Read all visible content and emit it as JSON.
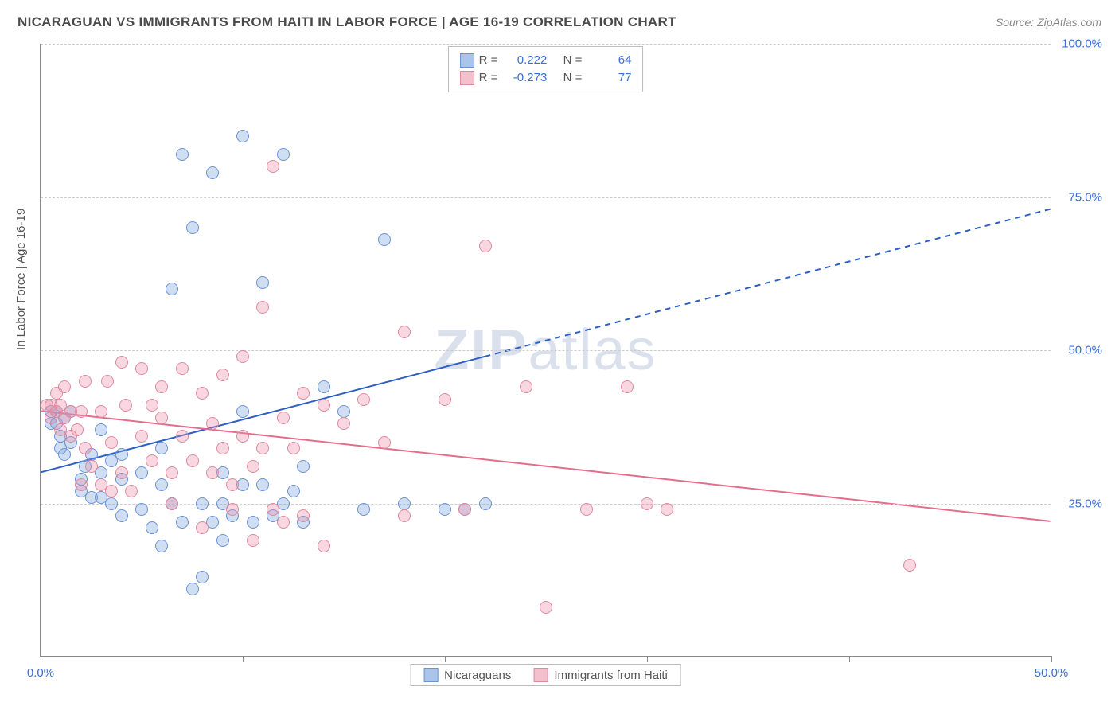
{
  "title": "NICARAGUAN VS IMMIGRANTS FROM HAITI IN LABOR FORCE | AGE 16-19 CORRELATION CHART",
  "source_label": "Source: ZipAtlas.com",
  "ylabel": "In Labor Force | Age 16-19",
  "watermark_a": "ZIP",
  "watermark_b": "atlas",
  "chart": {
    "type": "scatter",
    "xlim": [
      0,
      50
    ],
    "ylim": [
      0,
      100
    ],
    "xticks": [
      0,
      10,
      20,
      30,
      40,
      50
    ],
    "yticks": [
      25,
      50,
      75,
      100
    ],
    "xtick_labels": {
      "0": "0.0%",
      "50": "50.0%"
    },
    "ytick_labels": {
      "25": "25.0%",
      "50": "50.0%",
      "75": "75.0%",
      "100": "100.0%"
    },
    "grid_color": "#cccccc",
    "axis_color": "#888888",
    "label_color": "#3b6fd6",
    "background": "#ffffff",
    "point_radius": 8,
    "series": [
      {
        "id": "nicaraguans",
        "label": "Nicaraguans",
        "fill": "rgba(120,160,220,0.35)",
        "stroke": "#6a93d6",
        "swatch_fill": "#aac4ea",
        "swatch_stroke": "#6a93d6",
        "R": "0.222",
        "N": "64",
        "trend": {
          "x1": 0,
          "y1": 30,
          "x2": 50,
          "y2": 73,
          "solid_until_x": 22,
          "color": "#2d5fc4",
          "width": 2
        },
        "points": [
          [
            0.5,
            40
          ],
          [
            0.5,
            38
          ],
          [
            0.8,
            40
          ],
          [
            0.8,
            38
          ],
          [
            1,
            34
          ],
          [
            1,
            36
          ],
          [
            1.2,
            33
          ],
          [
            1.2,
            39
          ],
          [
            1.5,
            35
          ],
          [
            1.5,
            40
          ],
          [
            2,
            29
          ],
          [
            2,
            27
          ],
          [
            2.2,
            31
          ],
          [
            2.5,
            33
          ],
          [
            2.5,
            26
          ],
          [
            3,
            26
          ],
          [
            3,
            30
          ],
          [
            3,
            37
          ],
          [
            3.5,
            32
          ],
          [
            3.5,
            25
          ],
          [
            4,
            29
          ],
          [
            4,
            23
          ],
          [
            4,
            33
          ],
          [
            5,
            24
          ],
          [
            5,
            30
          ],
          [
            5.5,
            21
          ],
          [
            6,
            34
          ],
          [
            6,
            18
          ],
          [
            6,
            28
          ],
          [
            6.5,
            60
          ],
          [
            6.5,
            25
          ],
          [
            7,
            82
          ],
          [
            7,
            22
          ],
          [
            7.5,
            70
          ],
          [
            7.5,
            11
          ],
          [
            8,
            25
          ],
          [
            8,
            13
          ],
          [
            8.5,
            79
          ],
          [
            8.5,
            22
          ],
          [
            9,
            25
          ],
          [
            9,
            30
          ],
          [
            9,
            19
          ],
          [
            9.5,
            23
          ],
          [
            10,
            28
          ],
          [
            10,
            85
          ],
          [
            10,
            40
          ],
          [
            10.5,
            22
          ],
          [
            11,
            28
          ],
          [
            11,
            61
          ],
          [
            11.5,
            23
          ],
          [
            12,
            82
          ],
          [
            12,
            25
          ],
          [
            12.5,
            27
          ],
          [
            13,
            22
          ],
          [
            13,
            31
          ],
          [
            14,
            44
          ],
          [
            15,
            40
          ],
          [
            16,
            24
          ],
          [
            17,
            68
          ],
          [
            18,
            25
          ],
          [
            20,
            24
          ],
          [
            21,
            24
          ],
          [
            22,
            25
          ]
        ]
      },
      {
        "id": "haiti",
        "label": "Immigrants from Haiti",
        "fill": "rgba(235,140,165,0.35)",
        "stroke": "#e08aa0",
        "swatch_fill": "#f3c0cd",
        "swatch_stroke": "#e08aa0",
        "R": "-0.273",
        "N": "77",
        "trend": {
          "x1": 0,
          "y1": 40,
          "x2": 50,
          "y2": 22,
          "solid_until_x": 50,
          "color": "#e56d8c",
          "width": 2
        },
        "points": [
          [
            0.3,
            41
          ],
          [
            0.5,
            41
          ],
          [
            0.5,
            39
          ],
          [
            0.8,
            40
          ],
          [
            0.8,
            43
          ],
          [
            1,
            37
          ],
          [
            1,
            41
          ],
          [
            1.2,
            44
          ],
          [
            1.2,
            39
          ],
          [
            1.5,
            40
          ],
          [
            1.5,
            36
          ],
          [
            1.8,
            37
          ],
          [
            2,
            28
          ],
          [
            2,
            40
          ],
          [
            2.2,
            45
          ],
          [
            2.2,
            34
          ],
          [
            2.5,
            31
          ],
          [
            3,
            28
          ],
          [
            3,
            40
          ],
          [
            3.3,
            45
          ],
          [
            3.5,
            35
          ],
          [
            3.5,
            27
          ],
          [
            4,
            48
          ],
          [
            4,
            30
          ],
          [
            4.2,
            41
          ],
          [
            4.5,
            27
          ],
          [
            5,
            47
          ],
          [
            5,
            36
          ],
          [
            5.5,
            32
          ],
          [
            5.5,
            41
          ],
          [
            6,
            39
          ],
          [
            6,
            44
          ],
          [
            6.5,
            30
          ],
          [
            6.5,
            25
          ],
          [
            7,
            36
          ],
          [
            7,
            47
          ],
          [
            7.5,
            32
          ],
          [
            8,
            43
          ],
          [
            8,
            21
          ],
          [
            8.5,
            38
          ],
          [
            8.5,
            30
          ],
          [
            9,
            34
          ],
          [
            9,
            46
          ],
          [
            9.5,
            28
          ],
          [
            9.5,
            24
          ],
          [
            10,
            49
          ],
          [
            10,
            36
          ],
          [
            10.5,
            19
          ],
          [
            10.5,
            31
          ],
          [
            11,
            57
          ],
          [
            11,
            34
          ],
          [
            11.5,
            24
          ],
          [
            11.5,
            80
          ],
          [
            12,
            22
          ],
          [
            12,
            39
          ],
          [
            12.5,
            34
          ],
          [
            13,
            43
          ],
          [
            13,
            23
          ],
          [
            14,
            41
          ],
          [
            14,
            18
          ],
          [
            15,
            38
          ],
          [
            16,
            42
          ],
          [
            17,
            35
          ],
          [
            18,
            53
          ],
          [
            18,
            23
          ],
          [
            20,
            42
          ],
          [
            21,
            24
          ],
          [
            22,
            67
          ],
          [
            24,
            44
          ],
          [
            25,
            8
          ],
          [
            27,
            24
          ],
          [
            29,
            44
          ],
          [
            30,
            25
          ],
          [
            31,
            24
          ],
          [
            43,
            15
          ]
        ]
      }
    ]
  },
  "legend_r_label": "R =",
  "legend_n_label": "N ="
}
